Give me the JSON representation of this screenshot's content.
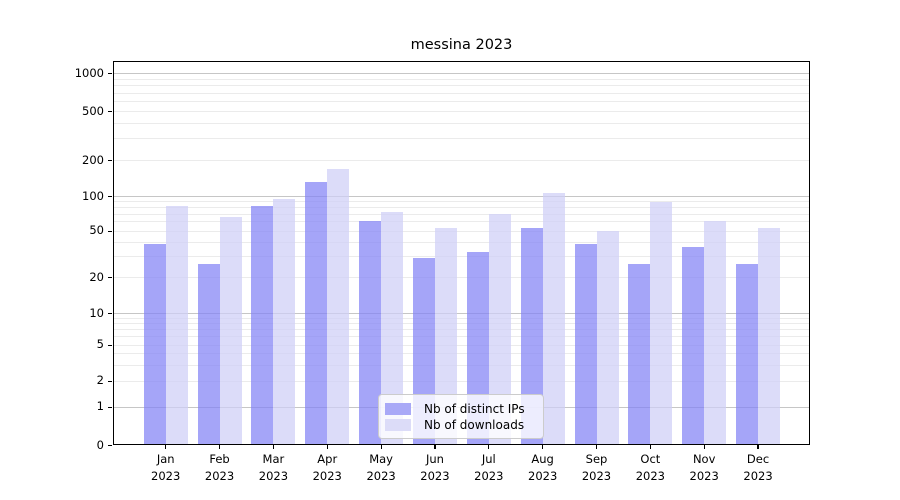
{
  "title": "messina 2023",
  "chart_data": {
    "type": "bar",
    "title": "messina 2023",
    "categories": [
      "Jan 2023",
      "Feb 2023",
      "Mar 2023",
      "Apr 2023",
      "May 2023",
      "Jun 2023",
      "Jul 2023",
      "Aug 2023",
      "Sep 2023",
      "Oct 2023",
      "Nov 2023",
      "Dec 2023"
    ],
    "series": [
      {
        "name": "Nb of distinct IPs",
        "color": "rgba(130,130,245,0.72)",
        "legend_color": "#a9a9f7",
        "values": [
          38,
          26,
          81,
          131,
          60,
          29,
          33,
          53,
          38,
          26,
          36,
          26
        ]
      },
      {
        "name": "Nb of downloads",
        "color": "rgba(206,206,246,0.72)",
        "legend_color": "#dcdcf8",
        "values": [
          82,
          66,
          94,
          168,
          72,
          53,
          70,
          105,
          50,
          89,
          60,
          53
        ]
      }
    ],
    "xlabel": "",
    "ylabel": "",
    "yscale": "symlog",
    "ylim": [
      0,
      1000
    ],
    "ytick_labels": [
      "0",
      "1",
      "2",
      "5",
      "10",
      "20",
      "50",
      "100",
      "200",
      "500",
      "1000"
    ],
    "grid": true,
    "legend_position": "lower-center"
  },
  "colors": {
    "grid_major": "#c6c6c6",
    "grid_minor": "#ebebeb",
    "spine": "#000000"
  }
}
